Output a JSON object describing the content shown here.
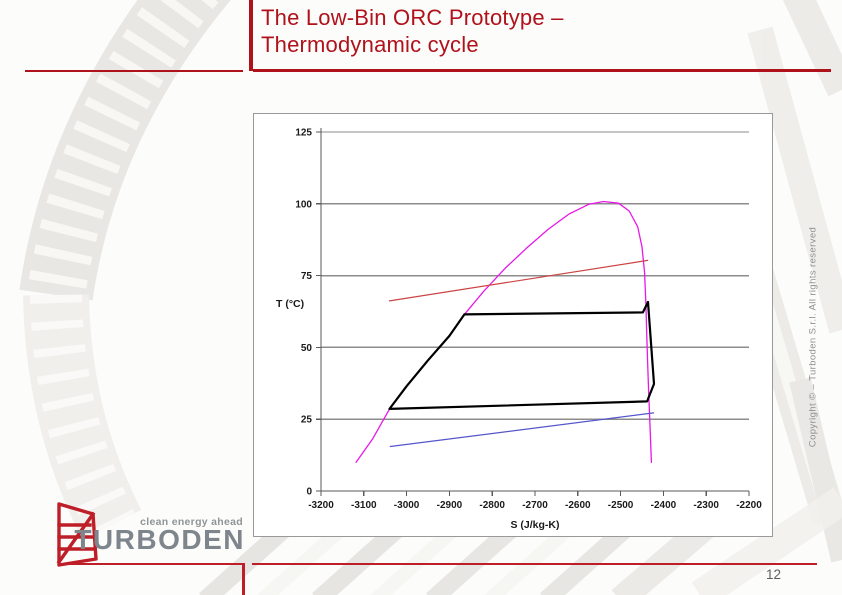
{
  "slide": {
    "title_lines": [
      "The Low-Bin ORC Prototype –",
      "Thermodynamic cycle"
    ],
    "page_number": "12",
    "copyright_vertical": "Copyright ©  –  Turboden S.r.l. All rights reserved"
  },
  "logo": {
    "tagline": "clean energy ahead",
    "brand": "TURBODEN"
  },
  "colors": {
    "accent_red": "#B0121B",
    "logo_red": "#BE1E28",
    "logo_gray": "#7E858C",
    "tagline_gray": "#8F9497",
    "page_number_gray": "#5F5F5F",
    "copyright_gray": "#8F8F8F",
    "chart_border": "#999999",
    "grid": "#8C8C8C",
    "axis": "#5A5A5A",
    "tick_text": "#1A1A1A"
  },
  "chart_data": {
    "type": "line",
    "title": "",
    "xlabel": "S (J/kg-K)",
    "ylabel": "T (°C)",
    "xlim": [
      -3200,
      -2200
    ],
    "ylim": [
      0,
      125
    ],
    "x_ticks": [
      -3200,
      -3100,
      -3000,
      -2900,
      -2800,
      -2700,
      -2600,
      -2500,
      -2400,
      -2300,
      -2200
    ],
    "y_ticks": [
      0,
      25,
      50,
      75,
      100,
      125
    ],
    "grid": "horizontal-only",
    "legend": "none",
    "series": [
      {
        "name": "saturation-dome",
        "color": "#E818E8",
        "width": 1.3,
        "points": [
          [
            -3118,
            10
          ],
          [
            -3080,
            18
          ],
          [
            -3040,
            28.5
          ],
          [
            -3000,
            36.5
          ],
          [
            -2950,
            45.5
          ],
          [
            -2900,
            54
          ],
          [
            -2865,
            61.5
          ],
          [
            -2820,
            69.5
          ],
          [
            -2770,
            77.5
          ],
          [
            -2720,
            84.5
          ],
          [
            -2670,
            91
          ],
          [
            -2620,
            96.5
          ],
          [
            -2575,
            99.8
          ],
          [
            -2540,
            100.8
          ],
          [
            -2505,
            100.2
          ],
          [
            -2480,
            97.5
          ],
          [
            -2460,
            92
          ],
          [
            -2450,
            85
          ],
          [
            -2444,
            76
          ],
          [
            -2441,
            65
          ],
          [
            -2439,
            55
          ],
          [
            -2437,
            45
          ],
          [
            -2434,
            33
          ],
          [
            -2431,
            22
          ],
          [
            -2428,
            10
          ]
        ]
      },
      {
        "name": "heat-source-line",
        "color": "#CC4444",
        "width": 1.2,
        "points": [
          [
            -3040,
            66.2
          ],
          [
            -2437,
            80.3
          ]
        ]
      },
      {
        "name": "cooling-water-line",
        "color": "#5555CC",
        "width": 1.2,
        "points": [
          [
            -3038,
            15.5
          ],
          [
            -2423,
            27.2
          ]
        ]
      },
      {
        "name": "orc-cycle",
        "color": "#000000",
        "width": 2.2,
        "points": [
          [
            -3040,
            28.6
          ],
          [
            -3000,
            36.5
          ],
          [
            -2950,
            45.5
          ],
          [
            -2900,
            54
          ],
          [
            -2865,
            61.5
          ],
          [
            -2448,
            62.2
          ],
          [
            -2436,
            65.8
          ],
          [
            -2422,
            37.3
          ],
          [
            -2438,
            31.2
          ],
          [
            -3040,
            28.6
          ]
        ]
      }
    ]
  }
}
